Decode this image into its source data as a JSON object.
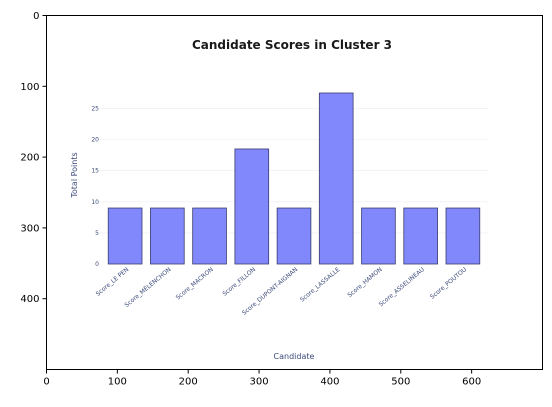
{
  "colors": {
    "figure_bg": "#ffffff",
    "panel_bg": "#ffffff",
    "bar_fill": "#8088fb",
    "bar_stroke": "#3a3d6e",
    "inner_text": "#3d4a7a",
    "gridline": "#ececf2"
  },
  "chart_data": [
    {
      "type": "bar",
      "title": "Candidate Scores in Cluster 3",
      "xlabel": "Candidate",
      "ylabel": "Total Points",
      "categories": [
        "Score_LE PEN",
        "Score_MÉLENCHON",
        "Score_MACRON",
        "Score_FILLON",
        "Score_DUPONT-AIGNAN",
        "Score_LASSALLE",
        "Score_HAMON",
        "Score_ASSELINEAU",
        "Score_POUTOU"
      ],
      "values": [
        9,
        9,
        9,
        18.5,
        9,
        27.5,
        9,
        9,
        9
      ],
      "ylim": [
        0,
        27.5
      ],
      "yticks": [
        0,
        5,
        10,
        15,
        20,
        25
      ],
      "ytick_labels": [
        "0",
        "5",
        "10",
        "15",
        "20",
        "25"
      ],
      "grid": true
    },
    {
      "type": "image_axes",
      "xlim": [
        0,
        700
      ],
      "ylim": [
        500,
        0
      ],
      "xticks": [
        0,
        100,
        200,
        300,
        400,
        500,
        600
      ],
      "xtick_labels": [
        "0",
        "100",
        "200",
        "300",
        "400",
        "500",
        "600"
      ],
      "yticks": [
        0,
        100,
        200,
        300,
        400
      ],
      "ytick_labels": [
        "0",
        "100",
        "200",
        "300",
        "400"
      ]
    }
  ]
}
